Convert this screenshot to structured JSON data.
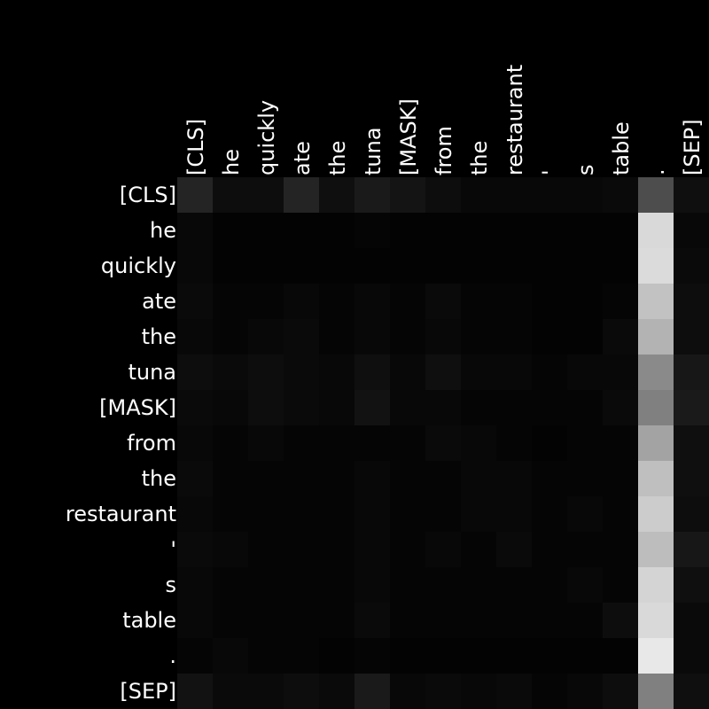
{
  "chart_data": {
    "type": "heatmap",
    "title": "",
    "xlabel": "",
    "ylabel": "",
    "colormap": "grayscale",
    "x_tokens": [
      "[CLS]",
      "he",
      "quickly",
      "ate",
      "the",
      "tuna",
      "[MASK]",
      "from",
      "the",
      "restaurant",
      "'",
      "s",
      "table",
      ".",
      "[SEP]"
    ],
    "y_tokens": [
      "[CLS]",
      "he",
      "quickly",
      "ate",
      "the",
      "tuna",
      "[MASK]",
      "from",
      "the",
      "restaurant",
      "'",
      "s",
      "table",
      ".",
      "[SEP]"
    ],
    "values": [
      [
        0.14,
        0.05,
        0.05,
        0.14,
        0.06,
        0.1,
        0.08,
        0.05,
        0.03,
        0.03,
        0.03,
        0.03,
        0.04,
        0.3,
        0.06
      ],
      [
        0.03,
        0.01,
        0.01,
        0.01,
        0.01,
        0.02,
        0.01,
        0.01,
        0.01,
        0.01,
        0.01,
        0.01,
        0.01,
        0.85,
        0.03
      ],
      [
        0.03,
        0.01,
        0.01,
        0.01,
        0.01,
        0.01,
        0.01,
        0.01,
        0.01,
        0.01,
        0.01,
        0.01,
        0.01,
        0.86,
        0.04
      ],
      [
        0.04,
        0.02,
        0.02,
        0.03,
        0.02,
        0.03,
        0.02,
        0.04,
        0.02,
        0.02,
        0.01,
        0.01,
        0.02,
        0.76,
        0.05
      ],
      [
        0.03,
        0.02,
        0.03,
        0.04,
        0.02,
        0.03,
        0.02,
        0.03,
        0.02,
        0.02,
        0.01,
        0.01,
        0.04,
        0.7,
        0.05
      ],
      [
        0.05,
        0.04,
        0.05,
        0.04,
        0.03,
        0.06,
        0.03,
        0.06,
        0.03,
        0.03,
        0.02,
        0.03,
        0.03,
        0.54,
        0.09
      ],
      [
        0.04,
        0.03,
        0.05,
        0.04,
        0.03,
        0.07,
        0.03,
        0.03,
        0.02,
        0.02,
        0.02,
        0.02,
        0.04,
        0.5,
        0.1
      ],
      [
        0.03,
        0.02,
        0.03,
        0.02,
        0.02,
        0.02,
        0.02,
        0.04,
        0.03,
        0.02,
        0.01,
        0.02,
        0.02,
        0.64,
        0.06
      ],
      [
        0.04,
        0.02,
        0.02,
        0.02,
        0.02,
        0.03,
        0.02,
        0.02,
        0.03,
        0.03,
        0.02,
        0.02,
        0.02,
        0.75,
        0.06
      ],
      [
        0.03,
        0.02,
        0.02,
        0.02,
        0.02,
        0.03,
        0.02,
        0.02,
        0.03,
        0.03,
        0.02,
        0.03,
        0.02,
        0.8,
        0.05
      ],
      [
        0.04,
        0.03,
        0.02,
        0.02,
        0.02,
        0.03,
        0.02,
        0.03,
        0.02,
        0.04,
        0.02,
        0.02,
        0.02,
        0.74,
        0.09
      ],
      [
        0.03,
        0.02,
        0.02,
        0.02,
        0.02,
        0.03,
        0.02,
        0.02,
        0.02,
        0.02,
        0.02,
        0.03,
        0.02,
        0.83,
        0.06
      ],
      [
        0.03,
        0.02,
        0.02,
        0.02,
        0.02,
        0.04,
        0.02,
        0.02,
        0.02,
        0.02,
        0.02,
        0.02,
        0.05,
        0.85,
        0.04
      ],
      [
        0.02,
        0.03,
        0.02,
        0.02,
        0.01,
        0.02,
        0.01,
        0.01,
        0.01,
        0.01,
        0.01,
        0.01,
        0.01,
        0.91,
        0.04
      ],
      [
        0.07,
        0.04,
        0.04,
        0.05,
        0.04,
        0.1,
        0.03,
        0.04,
        0.03,
        0.04,
        0.02,
        0.03,
        0.05,
        0.5,
        0.06
      ]
    ]
  }
}
